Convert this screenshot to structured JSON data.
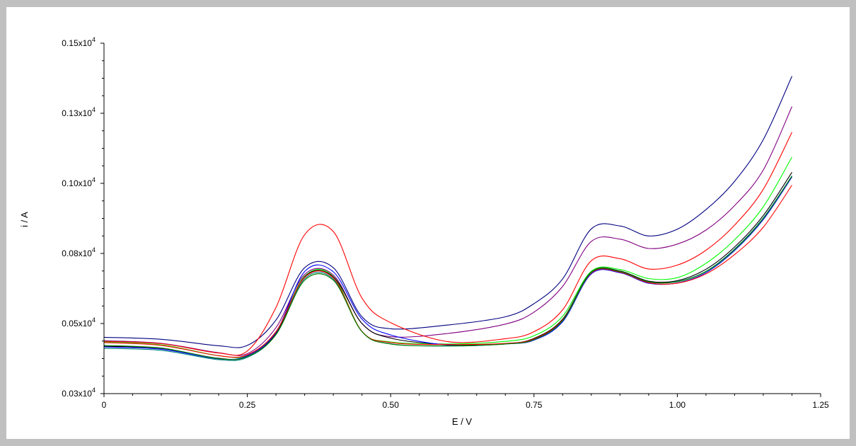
{
  "chart_data": {
    "type": "line",
    "title": "",
    "xlabel": "E / V",
    "ylabel": "i / A",
    "xlim": [
      0,
      1.25
    ],
    "ylim": [
      0.03,
      0.15
    ],
    "x_ticks": [
      0,
      0.25,
      0.5,
      0.75,
      1.0,
      1.25
    ],
    "x_tick_labels": [
      "0",
      "0.25",
      "0.50",
      "0.75",
      "1.00",
      "1.25"
    ],
    "y_ticks": [
      0.03,
      0.054,
      0.078,
      0.102,
      0.126,
      0.15
    ],
    "y_tick_labels": [
      {
        "mant": "0.03x10",
        "exp": "4"
      },
      {
        "mant": "0.05x10",
        "exp": "4"
      },
      {
        "mant": "0.08x10",
        "exp": "4"
      },
      {
        "mant": "0.10x10",
        "exp": "4"
      },
      {
        "mant": "0.13x10",
        "exp": "4"
      },
      {
        "mant": "0.15x10",
        "exp": "4"
      }
    ],
    "grid": false,
    "legend": "none",
    "x": [
      0,
      0.1,
      0.2,
      0.25,
      0.3,
      0.35,
      0.4,
      0.45,
      0.5,
      0.6,
      0.7,
      0.75,
      0.8,
      0.85,
      0.9,
      0.95,
      1.0,
      1.05,
      1.1,
      1.15,
      1.2
    ],
    "series": [
      {
        "color": "#000080",
        "values": [
          0.0493,
          0.0486,
          0.0464,
          0.0465,
          0.0552,
          0.0731,
          0.0731,
          0.0563,
          0.0522,
          0.0535,
          0.0563,
          0.0608,
          0.0693,
          0.0864,
          0.0874,
          0.084,
          0.0863,
          0.093,
          0.1027,
          0.117,
          0.1387
        ]
      },
      {
        "color": "#800080",
        "values": [
          0.0481,
          0.0472,
          0.044,
          0.0437,
          0.0526,
          0.0708,
          0.0706,
          0.054,
          0.0495,
          0.0506,
          0.0538,
          0.0579,
          0.0667,
          0.0821,
          0.0829,
          0.0797,
          0.0812,
          0.086,
          0.0944,
          0.1066,
          0.1283
        ]
      },
      {
        "color": "#ff0000",
        "values": [
          0.0479,
          0.0471,
          0.0439,
          0.0446,
          0.0595,
          0.0844,
          0.0855,
          0.0627,
          0.0543,
          0.0478,
          0.0488,
          0.0512,
          0.0587,
          0.0755,
          0.0762,
          0.0727,
          0.074,
          0.0791,
          0.0877,
          0.1,
          0.1195
        ]
      },
      {
        "color": "#00ff00",
        "values": [
          0.0477,
          0.0467,
          0.043,
          0.0431,
          0.0512,
          0.0702,
          0.0701,
          0.0513,
          0.0477,
          0.047,
          0.0479,
          0.0498,
          0.0565,
          0.0719,
          0.0725,
          0.0694,
          0.0697,
          0.0746,
          0.0827,
          0.094,
          0.111
        ]
      },
      {
        "color": "#000000",
        "values": [
          0.0462,
          0.0455,
          0.0421,
          0.0427,
          0.0505,
          0.07,
          0.07,
          0.054,
          0.049,
          0.0468,
          0.0471,
          0.0489,
          0.0555,
          0.0716,
          0.072,
          0.0685,
          0.0687,
          0.0726,
          0.0802,
          0.091,
          0.1058
        ]
      },
      {
        "color": "#0000ff",
        "values": [
          0.046,
          0.0452,
          0.0419,
          0.043,
          0.051,
          0.0718,
          0.0717,
          0.0555,
          0.0501,
          0.0466,
          0.047,
          0.0483,
          0.0546,
          0.071,
          0.0714,
          0.0678,
          0.0679,
          0.0714,
          0.079,
          0.0896,
          0.1042
        ]
      },
      {
        "color": "#008080",
        "values": [
          0.0455,
          0.0448,
          0.0416,
          0.0424,
          0.0502,
          0.0693,
          0.0692,
          0.0512,
          0.0471,
          0.0463,
          0.047,
          0.0485,
          0.055,
          0.0714,
          0.0718,
          0.0682,
          0.0684,
          0.0719,
          0.0795,
          0.0902,
          0.1046
        ]
      },
      {
        "color": "#ff0000",
        "values": [
          0.0475,
          0.0465,
          0.043,
          0.0433,
          0.0512,
          0.0698,
          0.0696,
          0.0513,
          0.0475,
          0.0468,
          0.0472,
          0.0487,
          0.0552,
          0.0713,
          0.0716,
          0.068,
          0.0678,
          0.071,
          0.0776,
          0.087,
          0.1014
        ]
      },
      {
        "color": "#008000",
        "values": [
          0.0465,
          0.0456,
          0.042,
          0.0427,
          0.0502,
          0.0688,
          0.0688,
          0.0512,
          0.047,
          0.0464,
          0.047,
          0.0485,
          0.055,
          0.0715,
          0.0718,
          0.0683,
          0.0683,
          0.0718,
          0.0793,
          0.09,
          0.1045
        ]
      }
    ]
  }
}
